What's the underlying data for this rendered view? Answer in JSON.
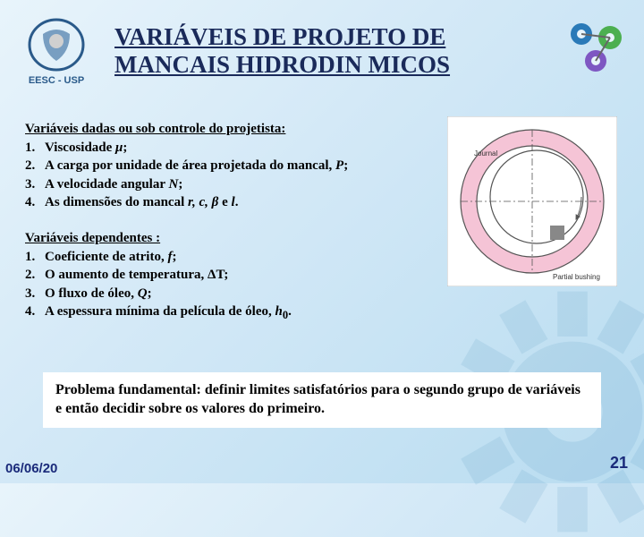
{
  "title": "VARIÁVEIS DE PROJETO DE MANCAIS HIDRODIN MICOS",
  "logo_label": "EESC - USP",
  "section1": {
    "heading": "Variáveis dadas ou sob controle do projetista:",
    "items": [
      {
        "n": "1.",
        "pre": "Viscosidade ",
        "it": "μ",
        "post": ";"
      },
      {
        "n": "2.",
        "pre": "A carga por unidade de área projetada do mancal, ",
        "it": "P",
        "post": ";"
      },
      {
        "n": "3.",
        "pre": "A velocidade angular ",
        "it": "N",
        "post": ";"
      },
      {
        "n": "4.",
        "pre": "As dimensões do mancal ",
        "it": "r, c, β",
        "post": " e ",
        "it2": "l",
        "post2": "."
      }
    ]
  },
  "section2": {
    "heading": "Variáveis dependentes :",
    "items": [
      {
        "n": "1.",
        "pre": "Coeficiente de atrito, ",
        "it": "f",
        "post": ";"
      },
      {
        "n": "2.",
        "pre": "O aumento de temperatura, ΔT;",
        "it": "",
        "post": ""
      },
      {
        "n": "3.",
        "pre": "O fluxo de óleo, ",
        "it": "Q",
        "post": ";"
      },
      {
        "n": "4.",
        "pre": "A espessura mínima da película de óleo, ",
        "it": "h",
        "sub": "0",
        "post": "."
      }
    ]
  },
  "footer_text": "Problema fundamental: definir limites satisfatórios para o segundo grupo de variáveis e então decidir sobre os valores do primeiro.",
  "date": "06/06/20",
  "page_number": "21",
  "diagram": {
    "outer_fill": "#f5c4d6",
    "inner_fill": "#ffffff",
    "stroke": "#555555",
    "label_journal": "Journal",
    "label_bushing": "Partial bushing"
  },
  "colors": {
    "title": "#1a2a5a",
    "accent": "#1a2a7a",
    "gear_blue": "#2a7ab8",
    "gear_green": "#4caf50",
    "gear_purple": "#7e57c2"
  }
}
